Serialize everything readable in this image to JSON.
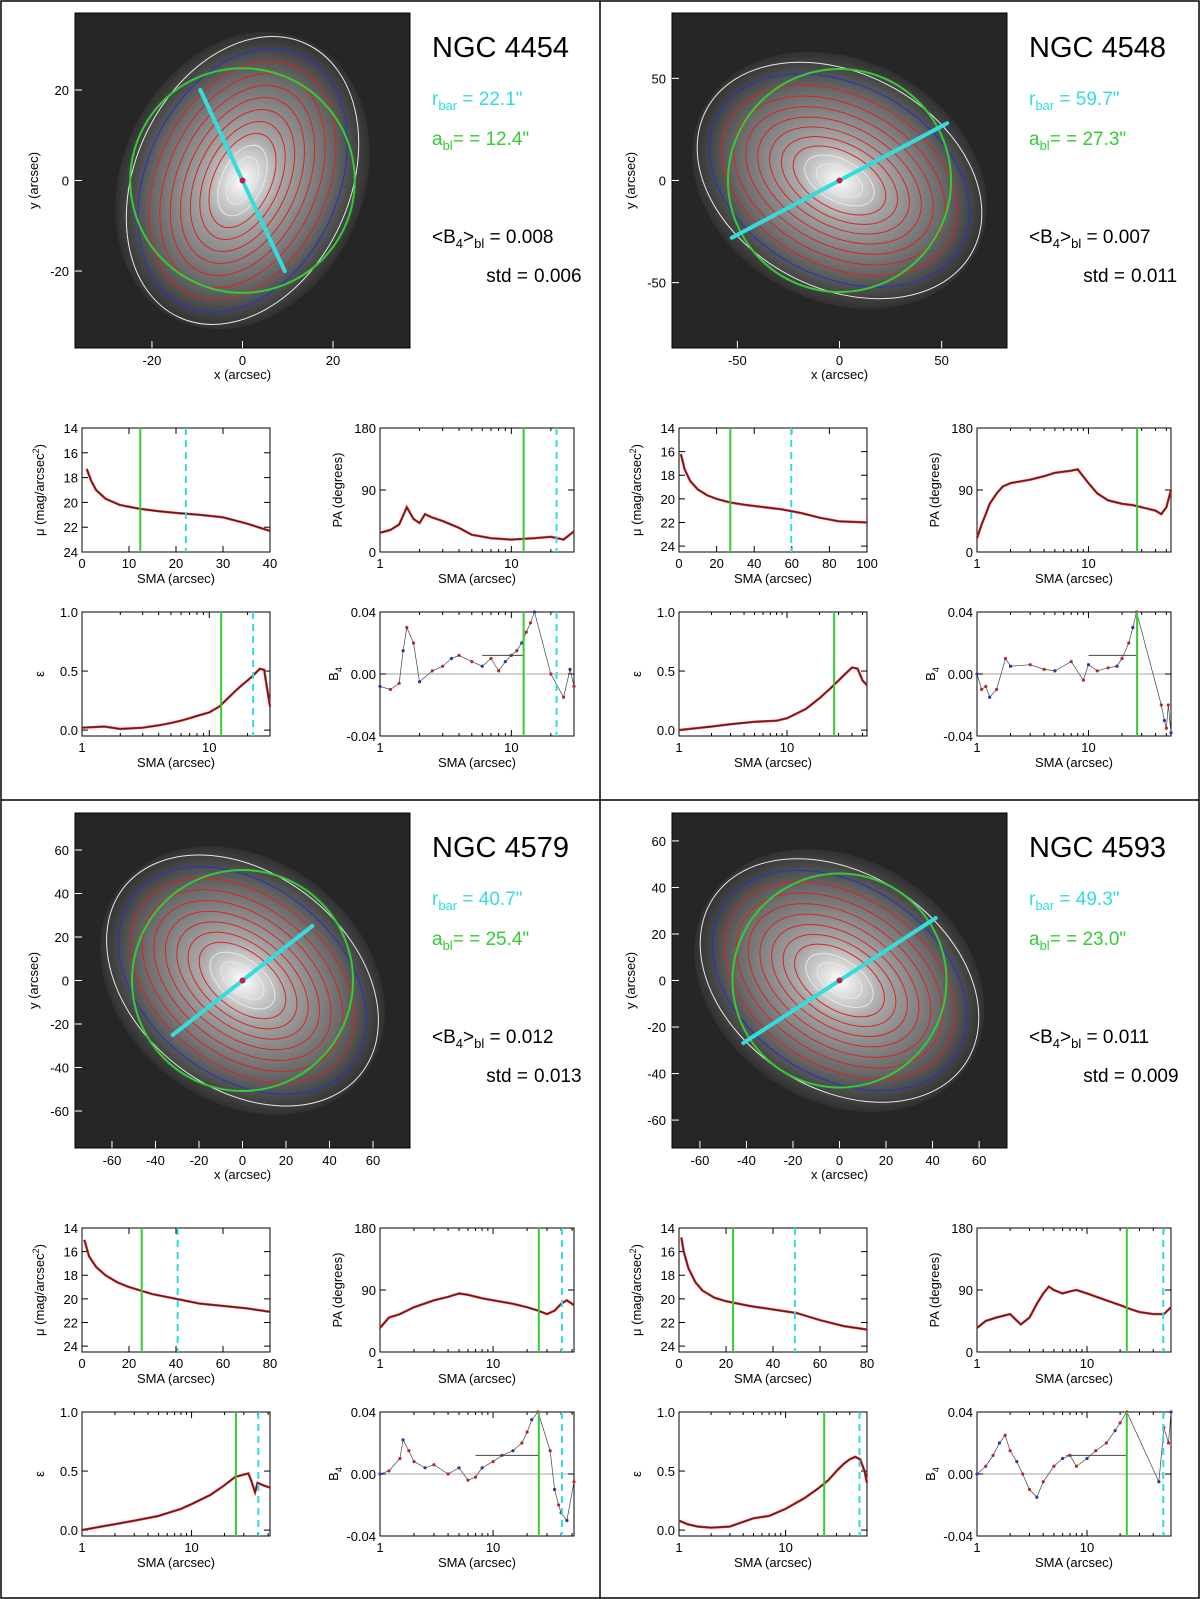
{
  "figure": {
    "image_xlabel": "x (arcsec)",
    "image_ylabel": "y (arcsec)",
    "mu_label_prefix": "μ (mag/arcsec",
    "mu_label_sup": "2",
    "mu_label_suffix": ")",
    "pa_label": "PA (degrees)",
    "eps_label": "ε",
    "b4_label_main": "B",
    "b4_label_sub": "4",
    "sma_label": "SMA (arcsec)",
    "rbar_main": "r",
    "rbar_sub": "bar",
    "abl_main": "a",
    "abl_sub": "bl",
    "b4bl_prefix": "<B",
    "b4bl_sub1": "4",
    "b4bl_mid": ">",
    "b4bl_sub2": "bl",
    "b4bl_eq": " =",
    "std_label": "std =",
    "colors": {
      "bar": "#33dddd",
      "bl": "#33cc33",
      "red": "#dd2222",
      "blue": "#2233cc",
      "white_contour": "#e8e8e8"
    }
  },
  "chart_data": [
    {
      "type": "scatter",
      "galaxy": "NGC 4454",
      "r_bar": "= 22.1\"",
      "a_bl": "= = 12.4\"",
      "b4_mean": "0.008",
      "std": "0.006",
      "r_bar_value": 22.1,
      "a_bl_value": 12.4,
      "image": {
        "xlim": [
          -37,
          37
        ],
        "ylim": [
          -37,
          37
        ],
        "xticks": [
          -20,
          0,
          20
        ],
        "yticks": [
          -20,
          0,
          20
        ],
        "bar_pa_deg": 25
      },
      "mu_profile": {
        "xlim": [
          0,
          40
        ],
        "ylim": [
          24,
          14
        ],
        "xticks": [
          0,
          10,
          20,
          30,
          40
        ],
        "yticks": [
          14,
          16,
          18,
          20,
          22,
          24
        ],
        "x": [
          1,
          2,
          3,
          5,
          8,
          12,
          16,
          20,
          25,
          30,
          35,
          40
        ],
        "y": [
          17.3,
          18.3,
          19.0,
          19.7,
          20.2,
          20.5,
          20.7,
          20.85,
          21.0,
          21.2,
          21.7,
          22.3
        ]
      },
      "pa_profile": {
        "xlim": [
          1,
          30
        ],
        "ylim": [
          0,
          180
        ],
        "xticks": [
          1,
          10
        ],
        "yticks": [
          0,
          90,
          180
        ],
        "x": [
          1,
          1.2,
          1.4,
          1.6,
          1.8,
          2.0,
          2.2,
          2.5,
          3,
          4,
          5,
          7,
          10,
          15,
          20,
          25,
          30
        ],
        "y": [
          28,
          32,
          40,
          65,
          48,
          42,
          55,
          50,
          45,
          35,
          25,
          20,
          18,
          20,
          22,
          18,
          30
        ]
      },
      "eps_profile": {
        "xlim": [
          1,
          30
        ],
        "ylim": [
          -0.05,
          1.0
        ],
        "xticks": [
          1,
          10
        ],
        "yticks": [
          0.0,
          0.5,
          1.0
        ],
        "x": [
          1,
          1.5,
          2,
          3,
          4,
          5,
          6,
          7,
          8,
          10,
          12,
          14,
          16,
          18,
          20,
          22,
          25,
          27,
          28,
          30
        ],
        "y": [
          0.02,
          0.03,
          0.01,
          0.02,
          0.04,
          0.06,
          0.08,
          0.1,
          0.12,
          0.15,
          0.2,
          0.27,
          0.33,
          0.38,
          0.42,
          0.46,
          0.52,
          0.51,
          0.4,
          0.2
        ]
      },
      "b4_profile": {
        "xlim": [
          1,
          30
        ],
        "ylim": [
          -0.04,
          0.04
        ],
        "xticks": [
          1,
          10
        ],
        "yticks": [
          -0.04,
          0.0,
          0.04
        ],
        "mean_from": 6,
        "mean_to": 12.4,
        "x": [
          1,
          1.2,
          1.4,
          1.5,
          1.6,
          1.8,
          2,
          2.5,
          3,
          3.5,
          4,
          5,
          6,
          7,
          8,
          9,
          10,
          11,
          12,
          13,
          14,
          15,
          20,
          25,
          28,
          30
        ],
        "y": [
          -0.008,
          -0.01,
          -0.006,
          0.015,
          0.03,
          0.02,
          -0.005,
          0.002,
          0.005,
          0.01,
          0.012,
          0.008,
          0.005,
          0.01,
          0.002,
          0.008,
          0.012,
          0.015,
          0.02,
          0.027,
          0.033,
          0.04,
          0.0,
          -0.015,
          0.003,
          -0.008
        ]
      }
    },
    {
      "type": "scatter",
      "galaxy": "NGC 4548",
      "r_bar": "= 59.7\"",
      "a_bl": "= = 27.3\"",
      "b4_mean": "0.007",
      "std": "0.011",
      "r_bar_value": 59.7,
      "a_bl_value": 27.3,
      "image": {
        "xlim": [
          -82,
          82
        ],
        "ylim": [
          -82,
          82
        ],
        "xticks": [
          -50,
          0,
          50
        ],
        "yticks": [
          -50,
          0,
          50
        ],
        "bar_pa_deg": 118
      },
      "mu_profile": {
        "xlim": [
          0,
          100
        ],
        "ylim": [
          24.5,
          14
        ],
        "xticks": [
          0,
          20,
          40,
          60,
          80,
          100
        ],
        "yticks": [
          14,
          16,
          18,
          20,
          22,
          24
        ],
        "x": [
          1,
          3,
          6,
          10,
          15,
          20,
          27,
          35,
          45,
          55,
          65,
          75,
          85,
          100
        ],
        "y": [
          16.2,
          17.5,
          18.5,
          19.2,
          19.7,
          20.0,
          20.3,
          20.5,
          20.7,
          20.9,
          21.2,
          21.6,
          21.9,
          22.0
        ]
      },
      "pa_profile": {
        "xlim": [
          1,
          55
        ],
        "ylim": [
          0,
          180
        ],
        "xticks": [
          1,
          10
        ],
        "yticks": [
          0,
          90,
          180
        ],
        "x": [
          1,
          1.1,
          1.2,
          1.3,
          1.5,
          1.7,
          2,
          3,
          4,
          5,
          7,
          8,
          10,
          12,
          15,
          20,
          25,
          30,
          40,
          45,
          50,
          55
        ],
        "y": [
          20,
          40,
          55,
          70,
          85,
          95,
          100,
          105,
          110,
          115,
          118,
          120,
          100,
          85,
          75,
          70,
          68,
          65,
          60,
          55,
          65,
          90
        ]
      },
      "eps_profile": {
        "xlim": [
          1,
          55
        ],
        "ylim": [
          -0.05,
          1.0
        ],
        "xticks": [
          1,
          10
        ],
        "yticks": [
          0.0,
          0.5,
          1.0
        ],
        "x": [
          1,
          2,
          3,
          5,
          8,
          10,
          15,
          20,
          25,
          30,
          35,
          40,
          45,
          50,
          55
        ],
        "y": [
          0.0,
          0.03,
          0.05,
          0.07,
          0.08,
          0.1,
          0.18,
          0.27,
          0.35,
          0.42,
          0.48,
          0.53,
          0.52,
          0.42,
          0.38
        ]
      },
      "b4_profile": {
        "xlim": [
          1,
          55
        ],
        "ylim": [
          -0.04,
          0.04
        ],
        "xticks": [
          1,
          10
        ],
        "yticks": [
          -0.04,
          0.0,
          0.04
        ],
        "mean_from": 10,
        "mean_to": 27.3,
        "x": [
          1,
          1.1,
          1.2,
          1.3,
          1.5,
          1.8,
          2,
          3,
          4,
          5,
          7,
          9,
          10,
          12,
          15,
          18,
          20,
          23,
          25,
          27,
          45,
          48,
          50,
          52,
          55
        ],
        "y": [
          0.0,
          -0.01,
          -0.008,
          -0.015,
          -0.01,
          0.01,
          0.005,
          0.006,
          0.003,
          0.002,
          0.008,
          -0.004,
          0.006,
          0.002,
          0.004,
          0.005,
          0.01,
          0.02,
          0.03,
          0.04,
          -0.02,
          -0.03,
          -0.035,
          -0.02,
          -0.038
        ]
      }
    },
    {
      "type": "scatter",
      "galaxy": "NGC 4579",
      "r_bar": "= 40.7\"",
      "a_bl": "= = 25.4\"",
      "b4_mean": "0.012",
      "std": "0.013",
      "r_bar_value": 40.7,
      "a_bl_value": 25.4,
      "image": {
        "xlim": [
          -77,
          77
        ],
        "ylim": [
          -77,
          77
        ],
        "xticks": [
          -60,
          -40,
          -20,
          0,
          20,
          40,
          60
        ],
        "yticks": [
          -60,
          -40,
          -20,
          0,
          20,
          40,
          60
        ],
        "bar_pa_deg": 128
      },
      "mu_profile": {
        "xlim": [
          0,
          80
        ],
        "ylim": [
          24.5,
          14
        ],
        "xticks": [
          0,
          20,
          40,
          60,
          80
        ],
        "yticks": [
          14,
          16,
          18,
          20,
          22,
          24
        ],
        "x": [
          1,
          3,
          6,
          10,
          15,
          20,
          25,
          30,
          40,
          50,
          60,
          70,
          80
        ],
        "y": [
          15.0,
          16.4,
          17.3,
          18.0,
          18.6,
          19.0,
          19.3,
          19.6,
          20.0,
          20.4,
          20.6,
          20.8,
          21.1
        ]
      },
      "pa_profile": {
        "xlim": [
          1,
          52
        ],
        "ylim": [
          0,
          180
        ],
        "xticks": [
          1,
          10
        ],
        "yticks": [
          0,
          90,
          180
        ],
        "x": [
          1,
          1.2,
          1.5,
          2,
          3,
          4,
          5,
          6,
          8,
          10,
          15,
          20,
          25,
          30,
          35,
          40,
          45,
          52
        ],
        "y": [
          35,
          50,
          55,
          65,
          75,
          80,
          85,
          83,
          78,
          75,
          70,
          65,
          60,
          55,
          60,
          70,
          75,
          68
        ]
      },
      "eps_profile": {
        "xlim": [
          1,
          52
        ],
        "ylim": [
          -0.05,
          1.0
        ],
        "xticks": [
          1,
          10
        ],
        "yticks": [
          0.0,
          0.5,
          1.0
        ],
        "x": [
          1,
          1.5,
          2,
          3,
          5,
          8,
          10,
          15,
          20,
          25,
          30,
          33,
          35,
          38,
          40,
          45,
          52
        ],
        "y": [
          0.0,
          0.03,
          0.05,
          0.08,
          0.12,
          0.18,
          0.22,
          0.3,
          0.38,
          0.45,
          0.47,
          0.48,
          0.42,
          0.32,
          0.4,
          0.38,
          0.36
        ]
      },
      "b4_profile": {
        "xlim": [
          1,
          52
        ],
        "ylim": [
          -0.04,
          0.04
        ],
        "xticks": [
          1,
          10
        ],
        "yticks": [
          -0.04,
          0.0,
          0.04
        ],
        "mean_from": 7,
        "mean_to": 25.4,
        "x": [
          1,
          1.2,
          1.5,
          1.6,
          1.8,
          2,
          2.5,
          3,
          4,
          5,
          6,
          7,
          8,
          10,
          12,
          15,
          18,
          20,
          22,
          25,
          32,
          35,
          38,
          40,
          45,
          52
        ],
        "y": [
          0.0,
          0.002,
          0.01,
          0.022,
          0.015,
          0.008,
          0.004,
          0.006,
          0.0,
          0.004,
          -0.004,
          -0.002,
          0.004,
          0.008,
          0.012,
          0.015,
          0.02,
          0.027,
          0.035,
          0.04,
          0.015,
          -0.01,
          -0.02,
          -0.025,
          -0.03,
          -0.005
        ]
      }
    },
    {
      "type": "scatter",
      "galaxy": "NGC 4593",
      "r_bar": "= 49.3\"",
      "a_bl": "= = 23.0\"",
      "b4_mean": "0.011",
      "std": "0.009",
      "r_bar_value": 49.3,
      "a_bl_value": 23.0,
      "image": {
        "xlim": [
          -72,
          72
        ],
        "ylim": [
          -72,
          72
        ],
        "xticks": [
          -60,
          -40,
          -20,
          0,
          20,
          40,
          60
        ],
        "yticks": [
          -60,
          -40,
          -20,
          0,
          20,
          40,
          60
        ],
        "bar_pa_deg": 123
      },
      "mu_profile": {
        "xlim": [
          0,
          80
        ],
        "ylim": [
          24.5,
          14
        ],
        "xticks": [
          0,
          20,
          40,
          60,
          80
        ],
        "yticks": [
          14,
          16,
          18,
          20,
          22,
          24
        ],
        "x": [
          1,
          2,
          4,
          7,
          10,
          15,
          20,
          25,
          30,
          40,
          50,
          60,
          70,
          80
        ],
        "y": [
          14.8,
          16.0,
          17.4,
          18.6,
          19.3,
          19.9,
          20.2,
          20.4,
          20.6,
          20.9,
          21.2,
          21.8,
          22.3,
          22.6
        ]
      },
      "pa_profile": {
        "xlim": [
          1,
          58
        ],
        "ylim": [
          0,
          180
        ],
        "xticks": [
          1,
          10
        ],
        "yticks": [
          0,
          90,
          180
        ],
        "x": [
          1,
          1.2,
          1.5,
          2,
          2.5,
          3,
          3.5,
          4,
          4.5,
          5,
          6,
          7,
          8,
          10,
          15,
          20,
          25,
          30,
          40,
          50,
          58
        ],
        "y": [
          35,
          45,
          50,
          55,
          40,
          50,
          70,
          85,
          95,
          90,
          85,
          88,
          90,
          85,
          75,
          68,
          62,
          58,
          55,
          55,
          65
        ]
      },
      "eps_profile": {
        "xlim": [
          1,
          58
        ],
        "ylim": [
          -0.05,
          1.0
        ],
        "xticks": [
          1,
          10
        ],
        "yticks": [
          0.0,
          0.5,
          1.0
        ],
        "x": [
          1,
          1.2,
          1.5,
          2,
          3,
          4,
          5,
          7,
          10,
          15,
          20,
          25,
          30,
          35,
          40,
          45,
          50,
          55,
          58
        ],
        "y": [
          0.08,
          0.05,
          0.03,
          0.02,
          0.03,
          0.07,
          0.1,
          0.12,
          0.18,
          0.27,
          0.35,
          0.42,
          0.5,
          0.56,
          0.6,
          0.62,
          0.6,
          0.5,
          0.4
        ]
      },
      "b4_profile": {
        "xlim": [
          1,
          58
        ],
        "ylim": [
          -0.04,
          0.04
        ],
        "xticks": [
          1,
          10
        ],
        "yticks": [
          -0.04,
          0.0,
          0.04
        ],
        "mean_from": 6.5,
        "mean_to": 23.0,
        "x": [
          1,
          1.2,
          1.4,
          1.6,
          1.8,
          2,
          2.3,
          2.6,
          3,
          3.5,
          4,
          5,
          6,
          7,
          8,
          10,
          12,
          15,
          18,
          20,
          23,
          45,
          50,
          55,
          58
        ],
        "y": [
          0.0,
          0.005,
          0.012,
          0.02,
          0.025,
          0.015,
          0.008,
          0.0,
          -0.01,
          -0.015,
          -0.005,
          0.005,
          0.01,
          0.012,
          0.005,
          0.01,
          0.015,
          0.02,
          0.028,
          0.033,
          0.04,
          -0.005,
          0.03,
          0.02,
          0.04
        ]
      }
    }
  ]
}
